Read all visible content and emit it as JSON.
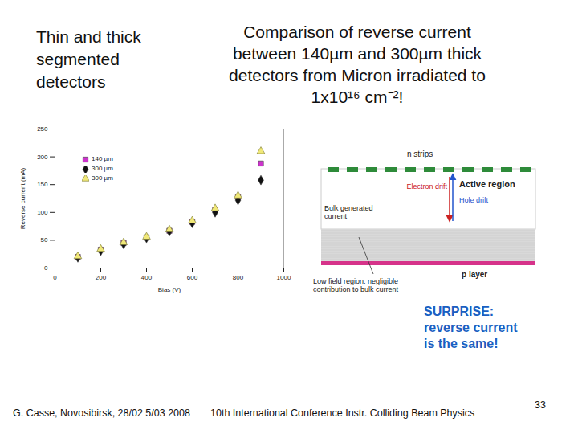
{
  "chart_data": {
    "type": "scatter",
    "title": [
      "Comparison of reverse current",
      "between  140µm and 300µm thick",
      "detectors from Micron irradiated to",
      "1x10¹⁶ cm⁻²!"
    ],
    "x_label": "Bias (V)",
    "y_label": "Reverse current (mA)",
    "x": [
      100,
      200,
      300,
      400,
      500,
      600,
      700,
      800,
      900
    ],
    "series": [
      {
        "name": "140 µm",
        "color": "#cc33cc",
        "marker": "square",
        "values": [
          20,
          33,
          45,
          55,
          67,
          83,
          105,
          128,
          188
        ]
      },
      {
        "name": "300 µm",
        "color": "#111111",
        "marker": "diamond",
        "values": [
          19,
          31,
          43,
          54,
          66,
          81,
          100,
          122,
          158
        ]
      },
      {
        "name": "300 µm",
        "color": "#f0e878",
        "marker": "triangle",
        "values": [
          21,
          34,
          46,
          56,
          69,
          85,
          107,
          130,
          210
        ]
      }
    ],
    "xlim": [
      0,
      1000
    ],
    "xticks": [
      0,
      200,
      400,
      600,
      800,
      1000
    ],
    "ylim": [
      0,
      250
    ],
    "yticks": [
      0,
      50,
      100,
      150,
      200,
      250
    ],
    "legend": "top-left",
    "grid": false
  },
  "slide": {
    "heading": [
      "Thin and thick",
      "segmented",
      "detectors"
    ],
    "diagram": {
      "n_strips": "n strips",
      "electron_drift": "Electron drift",
      "active_region": "Active region",
      "hole_drift": "Hole drift",
      "bulk_current": [
        "Bulk generated",
        "current"
      ],
      "p_layer": "p layer",
      "low_field": [
        "Low field region: negligible",
        "contribution to bulk current"
      ]
    },
    "callout": [
      "SURPRISE:",
      "reverse current",
      "is the same!"
    ],
    "footer_left": "G. Casse, Novosibirsk, 28/02 5/03 2008",
    "footer_center": "10th International Conference Instr. Colliding Beam Physics",
    "page_number": "33"
  }
}
